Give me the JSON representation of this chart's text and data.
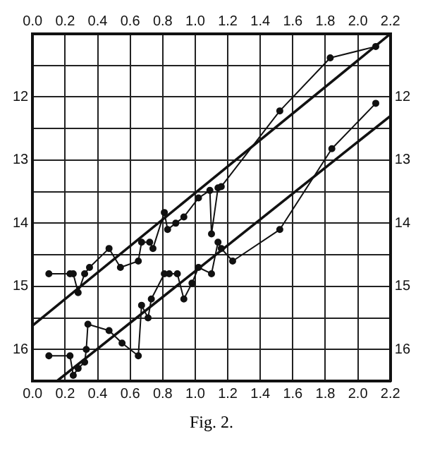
{
  "chart_data": {
    "type": "line",
    "annotations": [
      "Fig. 2."
    ],
    "legend": false,
    "grid": true,
    "marker": "circle",
    "line_style": "solid",
    "xlim": [
      0,
      2.2
    ],
    "xticks": [
      {
        "value": 0,
        "label": "0.0"
      },
      {
        "value": 0.2,
        "label": "0.2"
      },
      {
        "value": 0.4,
        "label": "0.4"
      },
      {
        "value": 0.6,
        "label": "0.6"
      },
      {
        "value": 0.8,
        "label": "0.8"
      },
      {
        "value": 1,
        "label": "1.0"
      },
      {
        "value": 1.2,
        "label": "1.2"
      },
      {
        "value": 1.4,
        "label": "1.4"
      },
      {
        "value": 1.6,
        "label": "1.6"
      },
      {
        "value": 1.8,
        "label": "1.8"
      },
      {
        "value": 2,
        "label": "2.0"
      },
      {
        "value": 2.2,
        "label": "2.2"
      }
    ],
    "x2lim": [
      0,
      2.2
    ],
    "x2ticks": [
      {
        "value": 0,
        "label": "0.0"
      },
      {
        "value": 0.2,
        "label": "0.2"
      },
      {
        "value": 0.4,
        "label": "0.4"
      },
      {
        "value": 0.6,
        "label": "0.6"
      },
      {
        "value": 0.8,
        "label": "0.8"
      },
      {
        "value": 1,
        "label": "1.0"
      },
      {
        "value": 1.2,
        "label": "1.2"
      },
      {
        "value": 1.4,
        "label": "1.4"
      },
      {
        "value": 1.6,
        "label": "1.6"
      },
      {
        "value": 1.8,
        "label": "1.8"
      },
      {
        "value": 2,
        "label": "2.0"
      },
      {
        "value": 2.2,
        "label": "2.2"
      }
    ],
    "ylim": [
      16.5,
      11
    ],
    "yticks": [
      {
        "value": 11,
        "label": null
      },
      {
        "value": 11.5,
        "label": null
      },
      12,
      {
        "value": 12.5,
        "label": null
      },
      13,
      {
        "value": 13.5,
        "label": null
      },
      14,
      {
        "value": 14.5,
        "label": null
      },
      15,
      {
        "value": 15.5,
        "label": null
      },
      16,
      {
        "value": 16.5,
        "label": null
      }
    ],
    "y2lim": [
      16.5,
      11
    ],
    "y2ticks": [
      12,
      13,
      14,
      15,
      16
    ],
    "series": [
      {
        "color": "#111111",
        "x": [
          0.1,
          0.23,
          0.25,
          0.28,
          0.32,
          0.35,
          0.47,
          0.54,
          0.65,
          0.67,
          0.72,
          0.74,
          0.81,
          0.83,
          0.88,
          0.93,
          1.02,
          1.09,
          1.1,
          1.14,
          1.16,
          1.52,
          1.83,
          2.11
        ],
        "values": [
          14.8,
          14.8,
          14.8,
          15.1,
          14.8,
          14.7,
          14.4,
          14.7,
          14.6,
          14.3,
          14.3,
          14.4,
          13.83,
          14.1,
          14.0,
          13.9,
          13.6,
          13.48,
          14.17,
          13.44,
          13.42,
          12.22,
          11.38,
          11.2
        ]
      },
      {
        "color": "#111111",
        "x": [
          0.1,
          0.23,
          0.25,
          0.28,
          0.32,
          0.33,
          0.34,
          0.47,
          0.55,
          0.65,
          0.67,
          0.71,
          0.73,
          0.81,
          0.84,
          0.89,
          0.93,
          0.98,
          1.02,
          1.1,
          1.14,
          1.16,
          1.23,
          1.52,
          1.84,
          2.11
        ],
        "values": [
          16.1,
          16.1,
          16.41,
          16.3,
          16.2,
          16.0,
          15.6,
          15.7,
          15.9,
          16.1,
          15.3,
          15.5,
          15.2,
          14.8,
          14.8,
          14.8,
          15.2,
          14.95,
          14.7,
          14.8,
          14.3,
          14.4,
          14.6,
          14.1,
          12.82,
          12.1
        ]
      },
      {
        "color": "#111111",
        "marker": "none",
        "x": [
          0,
          2.2
        ],
        "values": [
          15.62,
          11.0
        ]
      },
      {
        "color": "#111111",
        "marker": "none",
        "x": [
          0.15,
          2.2
        ],
        "values": [
          16.5,
          12.3
        ]
      }
    ]
  }
}
